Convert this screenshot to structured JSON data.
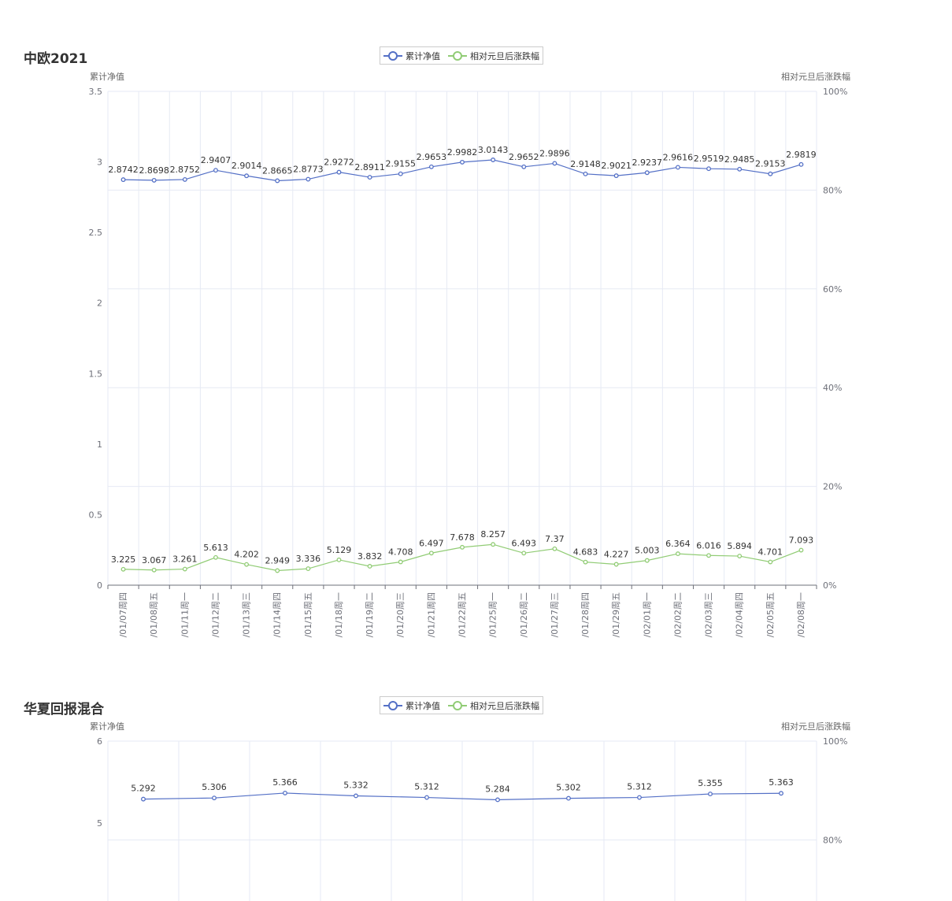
{
  "colors": {
    "nav": "#5470c6",
    "pct": "#91cc75",
    "grid": "#e6eaf4",
    "axis": "#6e7079"
  },
  "chart_data": [
    {
      "type": "line",
      "title": "中欧2021",
      "legend": [
        "累计净值",
        "相对元旦后涨跌幅"
      ],
      "ylabel_left": "累计净值",
      "ylabel_right": "相对元旦后涨跌幅",
      "ylim_left": [
        0,
        3.5
      ],
      "yticks_left": [
        "0",
        "0.5",
        "1",
        "1.5",
        "2",
        "2.5",
        "3",
        "3.5"
      ],
      "ylim_right": [
        0,
        100
      ],
      "yticks_right": [
        "0%",
        "20%",
        "40%",
        "60%",
        "80%",
        "100%"
      ],
      "grid": true,
      "legend_position": "top-center",
      "categories": [
        "/01/07周四",
        "/01/08周五",
        "/01/11周一",
        "/01/12周二",
        "/01/13周三",
        "/01/14周四",
        "/01/15周五",
        "/01/18周一",
        "/01/19周二",
        "/01/20周三",
        "/01/21周四",
        "/01/22周五",
        "/01/25周一",
        "/01/26周二",
        "/01/27周三",
        "/01/28周四",
        "/01/29周五",
        "/02/01周一",
        "/02/02周二",
        "/02/03周三",
        "/02/04周四",
        "/02/05周五",
        "/02/08周一"
      ],
      "series": [
        {
          "name": "累计净值",
          "axis": "left",
          "labels": [
            "2.8742",
            "2.8698",
            "2.8752",
            "2.9407",
            "2.9014",
            "2.8665",
            "2.8773",
            "2.9272",
            "2.8911",
            "2.9155",
            "2.9653",
            "2.9982",
            "3.0143",
            "2.9652",
            "2.9896",
            "2.9148",
            "2.9021",
            "2.9237",
            "2.9616",
            "2.9519",
            "2.9485",
            "2.9153",
            "2.9819"
          ]
        },
        {
          "name": "相对元旦后涨跌幅",
          "axis": "right",
          "labels": [
            "3.225",
            "3.067",
            "3.261",
            "5.613",
            "4.202",
            "2.949",
            "3.336",
            "5.129",
            "3.832",
            "4.708",
            "6.497",
            "7.678",
            "8.257",
            "6.493",
            "7.37",
            "4.683",
            "4.227",
            "5.003",
            "6.364",
            "6.016",
            "5.894",
            "4.701",
            "7.093"
          ]
        }
      ]
    },
    {
      "type": "line",
      "title": "华夏回报混合",
      "legend": [
        "累计净值",
        "相对元旦后涨跌幅"
      ],
      "ylabel_left": "累计净值",
      "ylabel_right": "相对元旦后涨跌幅",
      "yticks_left": [
        "6",
        "5"
      ],
      "yticks_right": [
        "100%",
        "80%"
      ],
      "grid": true,
      "legend_position": "top-center",
      "series": [
        {
          "name": "累计净值",
          "axis": "left",
          "labels": [
            "5.292",
            "5.306",
            "5.366",
            "5.332",
            "5.312",
            "5.284",
            "5.302",
            "5.312",
            "5.355",
            "5.363"
          ]
        }
      ]
    }
  ]
}
